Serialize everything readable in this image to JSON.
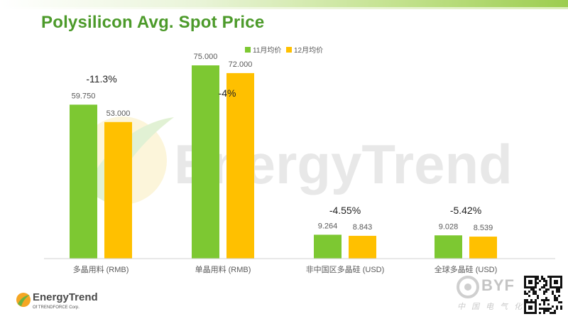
{
  "title": "Polysilicon Avg. Spot Price",
  "watermark": {
    "text": "EnergyTrend"
  },
  "brand": {
    "name": "EnergyTrend",
    "sub": "Of TRENDFORCE Corp."
  },
  "stamp": {
    "letters": "BYF",
    "sub": "中国电气化"
  },
  "chart_data": {
    "type": "bar",
    "categories": [
      "多晶用料 (RMB)",
      "单晶用料 (RMB)",
      "非中国区多晶硅 (USD)",
      "全球多晶硅 (USD)"
    ],
    "series": [
      {
        "name": "11月均价",
        "color": "#7dc832",
        "values": [
          59.75,
          75.0,
          9.264,
          9.028
        ],
        "labels": [
          "59.750",
          "75.000",
          "9.264",
          "9.028"
        ]
      },
      {
        "name": "12月均价",
        "color": "#ffc000",
        "values": [
          53.0,
          72.0,
          8.843,
          8.539
        ],
        "labels": [
          "53.000",
          "72.000",
          "8.843",
          "8.539"
        ]
      }
    ],
    "annotations": [
      "-11.3%",
      "-4%",
      "-4.55%",
      "-5.42%"
    ],
    "legend_position": "top-center",
    "grid": false,
    "ylim": [
      0,
      80
    ]
  }
}
